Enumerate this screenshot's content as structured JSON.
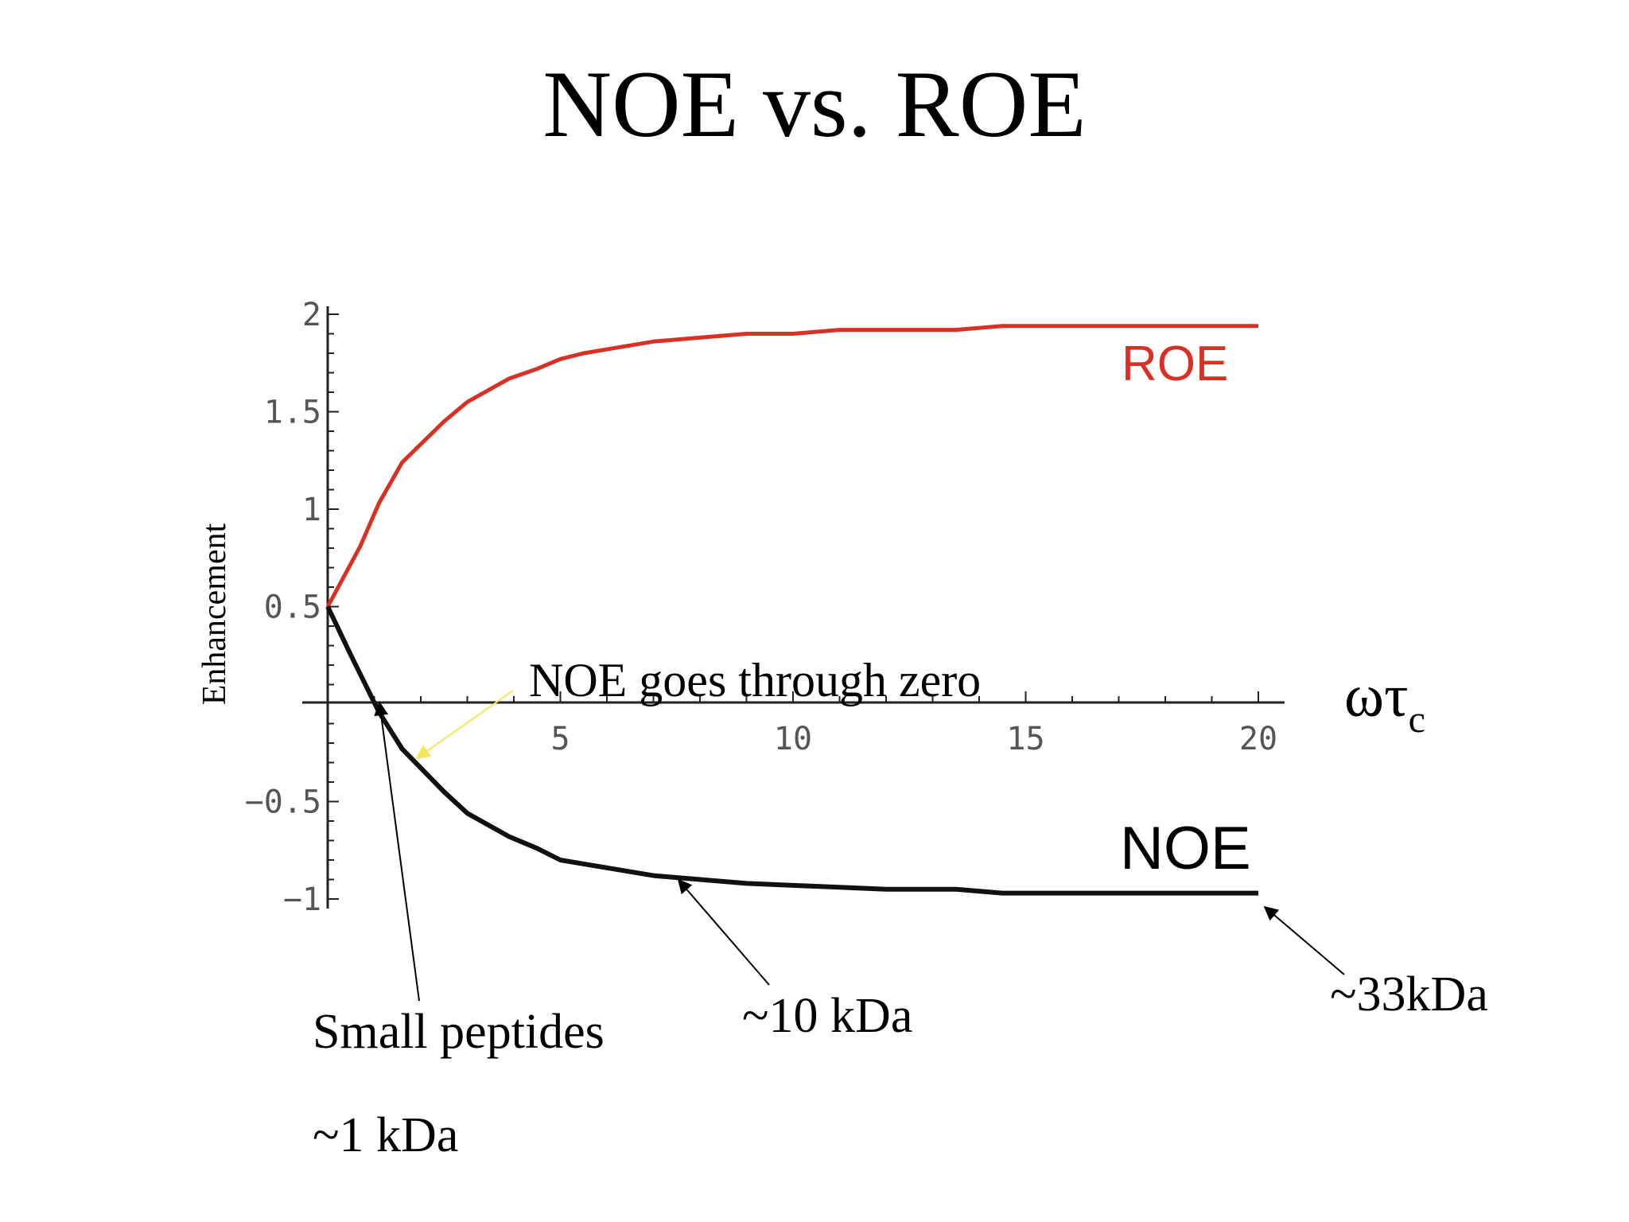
{
  "title": "NOE vs. ROE",
  "colors": {
    "roe": "#d93025",
    "noe": "#111111",
    "axis": "#222222",
    "zero_arrow": "#f2e85a"
  },
  "chart_data": {
    "type": "line",
    "ylabel": "Enhancement",
    "xlabel_main": "ωτ",
    "xlabel_sub": "c",
    "xlim": [
      0,
      20
    ],
    "ylim": [
      -1,
      2
    ],
    "x_ticks": [
      "5",
      "10",
      "15",
      "20"
    ],
    "y_ticks": [
      "2",
      "1.5",
      "1",
      "0.5",
      "−0.5",
      "−1"
    ],
    "series": [
      {
        "name": "ROE",
        "x": [
          0,
          0.7,
          1.1,
          1.6,
          2.5,
          3,
          3.9,
          4.5,
          5,
          5.5,
          6.5,
          7,
          8,
          9,
          10,
          11,
          12,
          13.5,
          14.5,
          16,
          18,
          20
        ],
        "y": [
          0.5,
          0.81,
          1.03,
          1.24,
          1.45,
          1.55,
          1.67,
          1.72,
          1.77,
          1.8,
          1.84,
          1.86,
          1.88,
          1.9,
          1.9,
          1.92,
          1.92,
          1.92,
          1.94,
          1.94,
          1.94,
          1.94
        ]
      },
      {
        "name": "NOE",
        "x": [
          0,
          0.5,
          1.1,
          1.6,
          2.5,
          3,
          3.9,
          4.5,
          5,
          5.5,
          6.5,
          7,
          8,
          9,
          10,
          11,
          12,
          13.5,
          14.5,
          16,
          18,
          20
        ],
        "y": [
          0.5,
          0.25,
          -0.04,
          -0.23,
          -0.45,
          -0.56,
          -0.68,
          -0.74,
          -0.8,
          -0.82,
          -0.86,
          -0.88,
          -0.9,
          -0.92,
          -0.93,
          -0.94,
          -0.95,
          -0.95,
          -0.97,
          -0.97,
          -0.97,
          -0.97
        ]
      }
    ]
  },
  "annotations": {
    "zero_crossing": "NOE goes through zero",
    "small_peptides": "Small peptides",
    "small_peptides_size": "~1 kDa",
    "medium": "~10 kDa",
    "large": "~33kDa"
  }
}
